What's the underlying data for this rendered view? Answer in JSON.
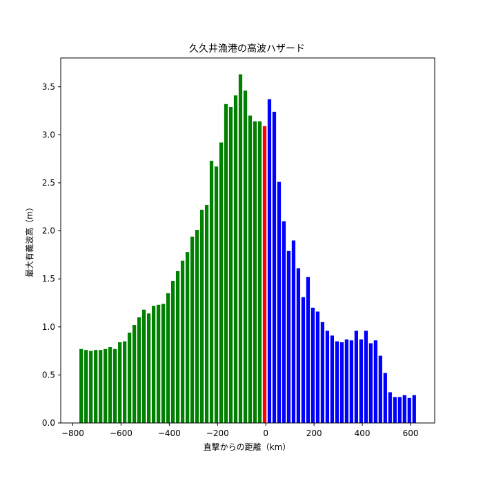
{
  "chart_data": {
    "type": "bar",
    "title": "久久井漁港の高波ハザード",
    "xlabel": "直撃からの距離（km）",
    "ylabel": "最大有義波高（m）",
    "xlim": [
      -850,
      700
    ],
    "ylim": [
      0,
      3.8
    ],
    "xticks": [
      -800,
      -600,
      -400,
      -200,
      0,
      200,
      400,
      600
    ],
    "yticks": [
      0.0,
      0.5,
      1.0,
      1.5,
      2.0,
      2.5,
      3.0,
      3.5
    ],
    "xtick_labels": [
      "−800",
      "−600",
      "−400",
      "−200",
      "0",
      "200",
      "400",
      "600"
    ],
    "ytick_labels": [
      "0.0",
      "0.5",
      "1.0",
      "1.5",
      "2.0",
      "2.5",
      "3.0",
      "3.5"
    ],
    "bar_width": 15,
    "grid": false,
    "legend": "none",
    "series": [
      {
        "color": "#008000",
        "x": [
          -765,
          -745,
          -725,
          -705,
          -685,
          -665,
          -645,
          -625,
          -605,
          -585,
          -565,
          -545,
          -525,
          -505,
          -485,
          -465,
          -445,
          -425,
          -405,
          -385,
          -365,
          -345,
          -325,
          -305,
          -285,
          -265,
          -245,
          -225,
          -205,
          -185,
          -165,
          -145,
          -125,
          -105,
          -85,
          -65,
          -45,
          -25
        ],
        "values": [
          0.77,
          0.76,
          0.75,
          0.76,
          0.76,
          0.77,
          0.79,
          0.77,
          0.84,
          0.85,
          0.94,
          1.02,
          1.1,
          1.18,
          1.14,
          1.22,
          1.23,
          1.24,
          1.35,
          1.48,
          1.58,
          1.69,
          1.78,
          1.94,
          2.01,
          2.22,
          2.27,
          2.73,
          2.67,
          2.92,
          3.32,
          3.29,
          3.41,
          3.63,
          3.46,
          3.2,
          3.14,
          3.14
        ]
      },
      {
        "color": "#ff0000",
        "x": [
          -5
        ],
        "values": [
          3.09
        ]
      },
      {
        "color": "#0000ff",
        "x": [
          15,
          35,
          55,
          75,
          95,
          115,
          135,
          155,
          175,
          195,
          215,
          235,
          255,
          275,
          295,
          315,
          335,
          355,
          375,
          395,
          415,
          435,
          455,
          475,
          495,
          515,
          535,
          555,
          575,
          595,
          615
        ],
        "values": [
          3.37,
          3.24,
          2.51,
          2.1,
          1.79,
          1.9,
          1.61,
          1.31,
          1.52,
          1.2,
          1.16,
          1.05,
          0.96,
          0.91,
          0.85,
          0.84,
          0.87,
          0.86,
          0.96,
          0.87,
          0.96,
          0.83,
          0.86,
          0.7,
          0.52,
          0.32,
          0.27,
          0.27,
          0.29,
          0.26,
          0.29
        ]
      }
    ]
  }
}
